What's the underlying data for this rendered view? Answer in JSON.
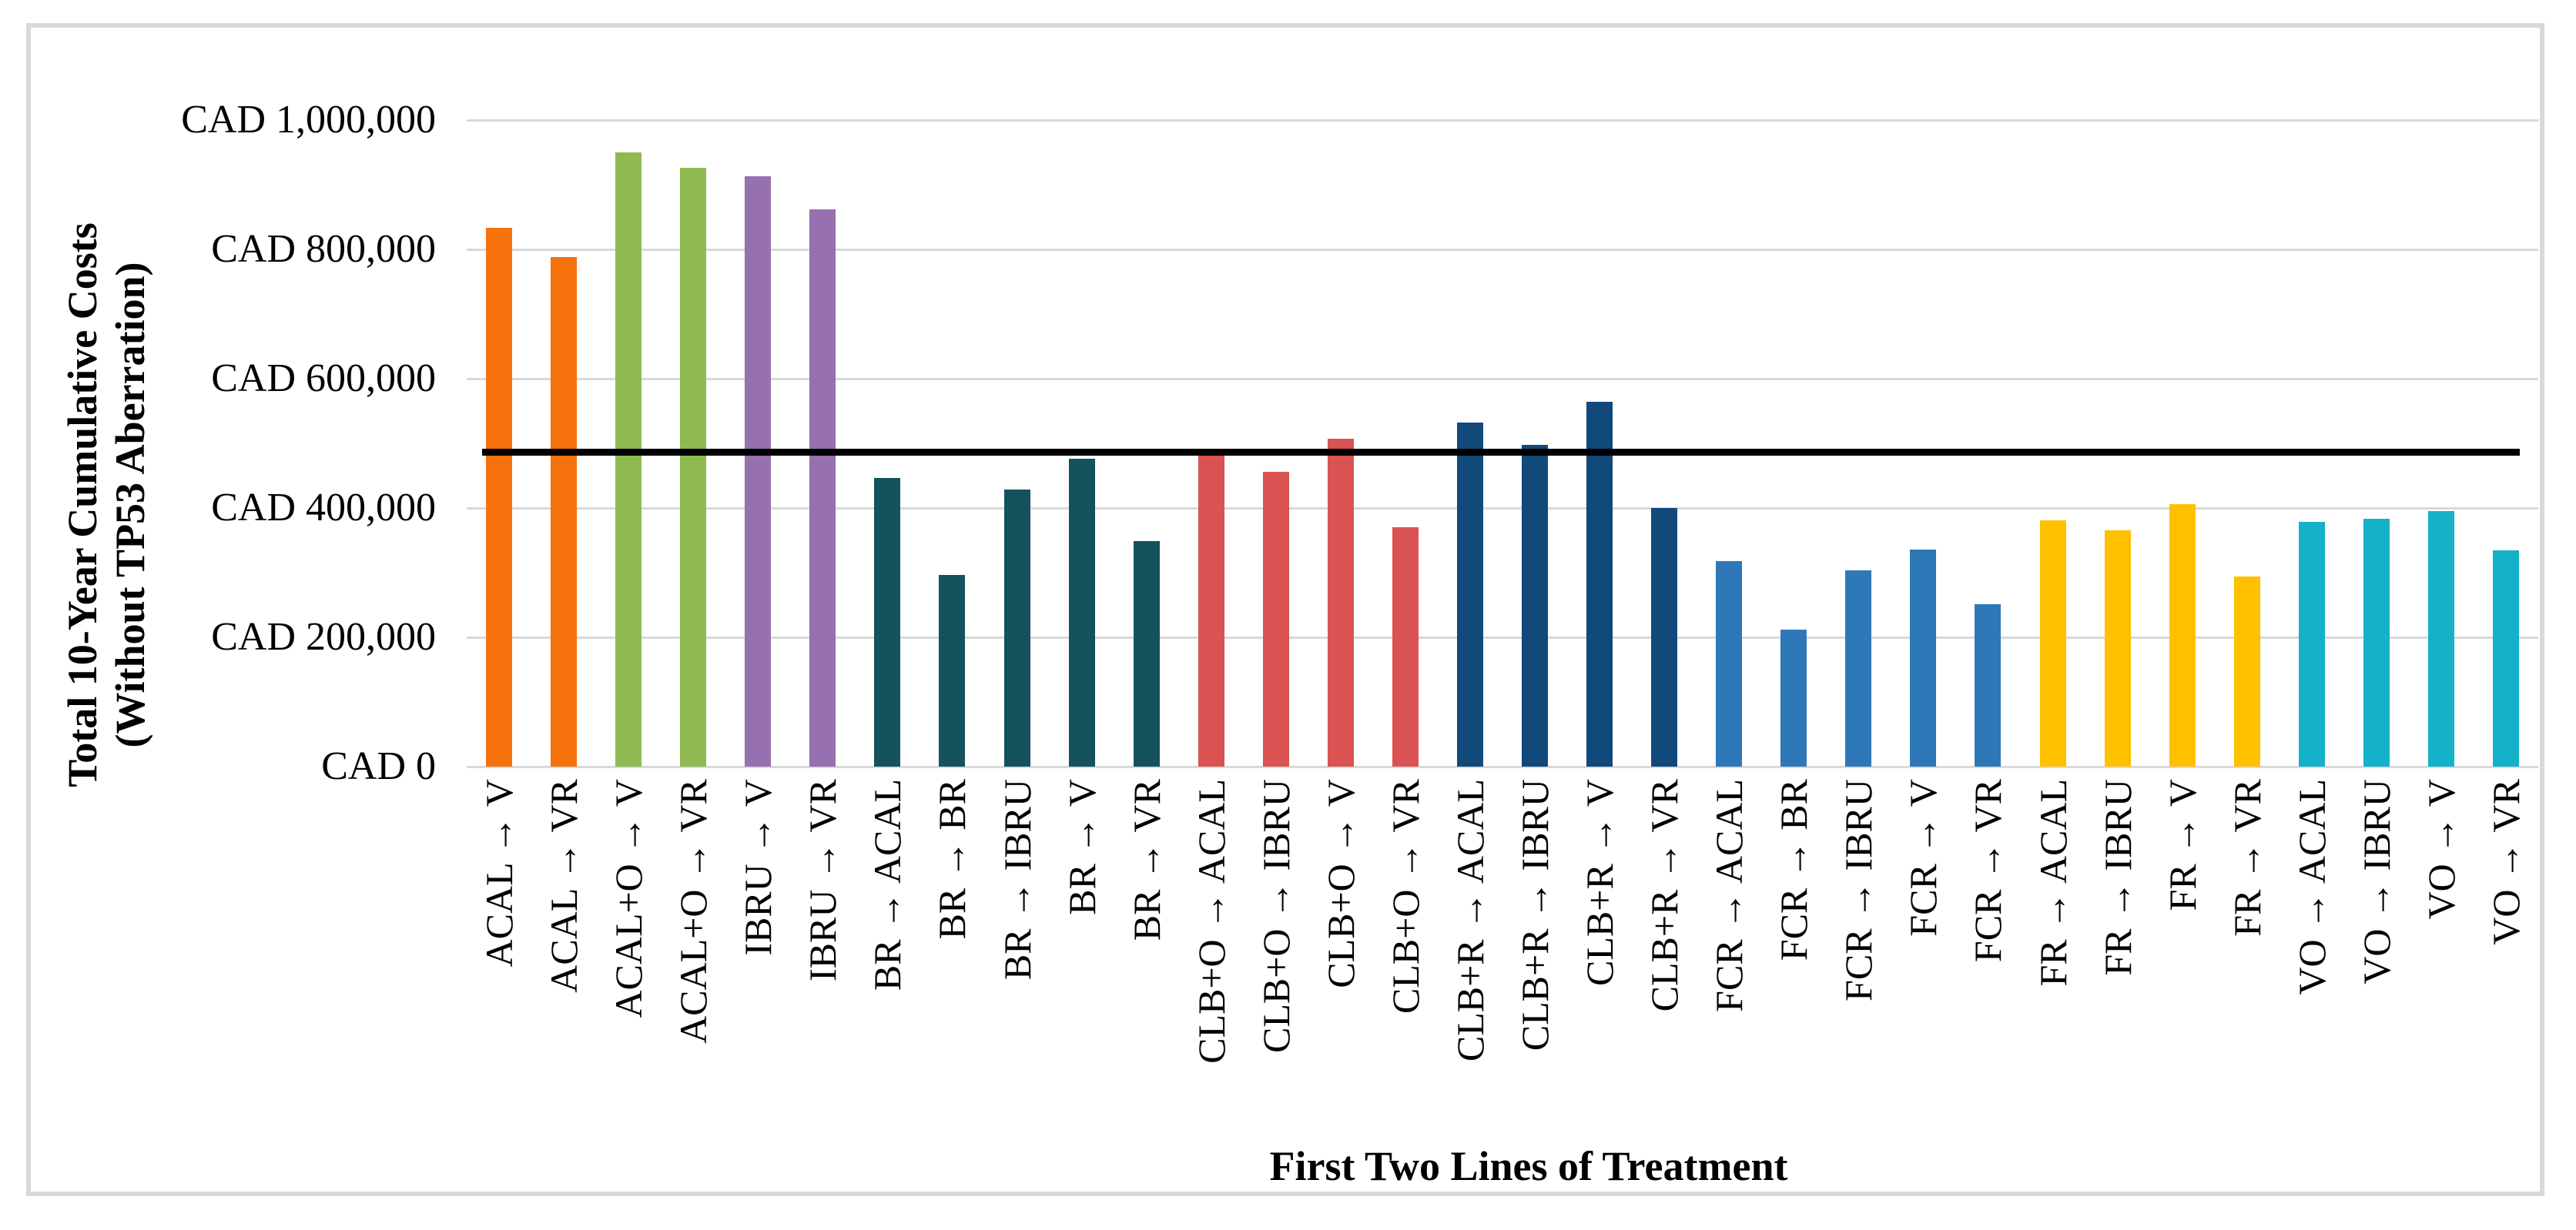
{
  "figure": {
    "background": "#ffffff",
    "border_color": "#d9d9d9"
  },
  "chart_data": {
    "type": "bar",
    "title": "",
    "xlabel": "First Two Lines of Treatment",
    "ylabel_line1": "Total 10-Year Cumulative Costs",
    "ylabel_line2": "(Without TP53 Aberration)",
    "ylim": [
      0,
      1000000
    ],
    "grid": true,
    "legend": "none",
    "y_ticks": [
      {
        "label": "CAD 1,000,000",
        "value": 1000000
      },
      {
        "label": "CAD 800,000",
        "value": 800000
      },
      {
        "label": "CAD 600,000",
        "value": 600000
      },
      {
        "label": "CAD 400,000",
        "value": 400000
      },
      {
        "label": "CAD 200,000",
        "value": 200000
      },
      {
        "label": "CAD 0",
        "value": 0
      }
    ],
    "group_colors": {
      "ACAL": "#f5720d",
      "ACAL+O": "#8eba51",
      "IBRU": "#9670af",
      "BR": "#14525e",
      "CLB+O": "#d95352",
      "CLB+R": "#11497b",
      "FCR": "#2f78b8",
      "FR": "#ffc000",
      "VO": "#14b1c9"
    },
    "points": [
      {
        "label": "ACAL → V",
        "group": "ACAL",
        "value": 833000
      },
      {
        "label": "ACAL → VR",
        "group": "ACAL",
        "value": 788000
      },
      {
        "label": "ACAL+O → V",
        "group": "ACAL+O",
        "value": 950000
      },
      {
        "label": "ACAL+O → VR",
        "group": "ACAL+O",
        "value": 926000
      },
      {
        "label": "IBRU → V",
        "group": "IBRU",
        "value": 913000
      },
      {
        "label": "IBRU → VR",
        "group": "IBRU",
        "value": 862000
      },
      {
        "label": "BR → ACAL",
        "group": "BR",
        "value": 447000
      },
      {
        "label": "BR → BR",
        "group": "BR",
        "value": 296000
      },
      {
        "label": "BR → IBRU",
        "group": "BR",
        "value": 428000
      },
      {
        "label": "BR → V",
        "group": "BR",
        "value": 476000
      },
      {
        "label": "BR → VR",
        "group": "BR",
        "value": 349000
      },
      {
        "label": "CLB+O → ACAL",
        "group": "CLB+O",
        "value": 483000
      },
      {
        "label": "CLB+O → IBRU",
        "group": "CLB+O",
        "value": 456000
      },
      {
        "label": "CLB+O → V",
        "group": "CLB+O",
        "value": 507000
      },
      {
        "label": "CLB+O → VR",
        "group": "CLB+O",
        "value": 370000
      },
      {
        "label": "CLB+R → ACAL",
        "group": "CLB+R",
        "value": 532000
      },
      {
        "label": "CLB+R → IBRU",
        "group": "CLB+R",
        "value": 498000
      },
      {
        "label": "CLB+R → V",
        "group": "CLB+R",
        "value": 564000
      },
      {
        "label": "CLB+R → VR",
        "group": "CLB+R",
        "value": 400000
      },
      {
        "label": "FCR → ACAL",
        "group": "FCR",
        "value": 318000
      },
      {
        "label": "FCR → BR",
        "group": "FCR",
        "value": 212000
      },
      {
        "label": "FCR → IBRU",
        "group": "FCR",
        "value": 304000
      },
      {
        "label": "FCR → V",
        "group": "FCR",
        "value": 336000
      },
      {
        "label": "FCR → VR",
        "group": "FCR",
        "value": 251000
      },
      {
        "label": "FR → ACAL",
        "group": "FR",
        "value": 381000
      },
      {
        "label": "FR → IBRU",
        "group": "FR",
        "value": 365000
      },
      {
        "label": "FR → V",
        "group": "FR",
        "value": 406000
      },
      {
        "label": "FR → VR",
        "group": "FR",
        "value": 294000
      },
      {
        "label": "VO → ACAL",
        "group": "VO",
        "value": 378000
      },
      {
        "label": "VO → IBRU",
        "group": "VO",
        "value": 383000
      },
      {
        "label": "VO → V",
        "group": "VO",
        "value": 395000
      },
      {
        "label": "VO → VR",
        "group": "VO",
        "value": 334000
      }
    ],
    "threshold_line": {
      "value": 487000,
      "color": "#000000"
    }
  }
}
